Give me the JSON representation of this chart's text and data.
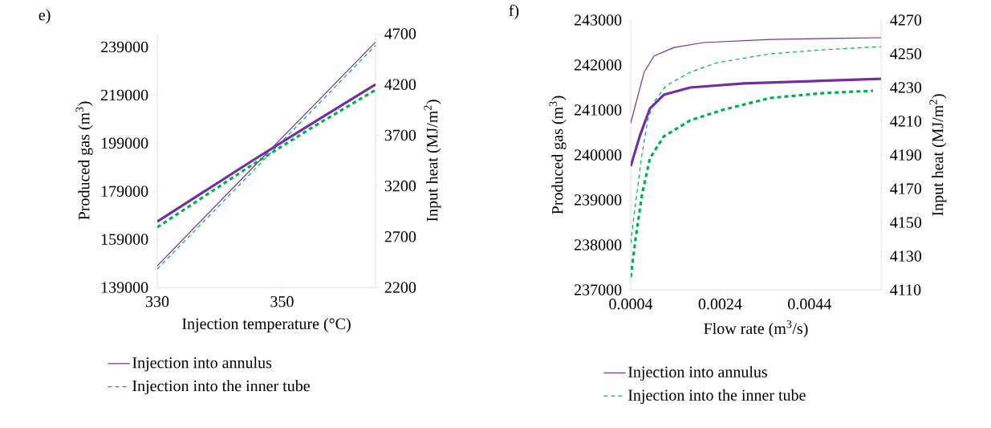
{
  "chart_data": [
    {
      "type": "line",
      "title": "e)",
      "xlabel": "Injection temperature (°C)",
      "ylabel": "Produced gas (m$^{3}$)",
      "y2label": "Input heat (MJ/m$^{2}$)",
      "xlim": [
        330,
        365
      ],
      "xticks": [
        330,
        350
      ],
      "ylim": [
        139000,
        244500
      ],
      "yticks": [
        139000,
        159000,
        179000,
        199000,
        219000,
        239000
      ],
      "y2lim": [
        2200,
        4700
      ],
      "y2ticks": [
        2200,
        2700,
        3200,
        3700,
        4200,
        4700
      ],
      "grid": false,
      "legend": "bottom",
      "marker": "none",
      "series": [
        {
          "name": "Injection into annulus",
          "color": "#7030a0",
          "line_style": "solid",
          "x": [
            330,
            345,
            355,
            365
          ],
          "values": [
            148000,
            188000,
            214500,
            241000
          ]
        },
        {
          "name": "Injection into the inner tube",
          "color": "#00b050",
          "line_style": "dashed",
          "x": [
            330,
            345,
            355,
            365
          ],
          "values": [
            146700,
            186500,
            213000,
            239700
          ]
        },
        {
          "color": "#7030a0",
          "line_style": "solid",
          "axis": "y2",
          "x": [
            330,
            345,
            355,
            365
          ],
          "values": [
            2849,
            3440,
            3822,
            4200
          ]
        },
        {
          "color": "#00b050",
          "line_style": "dashed",
          "axis": "y2",
          "x": [
            330,
            345,
            355,
            365
          ],
          "values": [
            2793,
            3400,
            3782,
            4146
          ]
        }
      ]
    },
    {
      "type": "line",
      "title": "f)",
      "xlabel": "Flow rate (m$^{3}$/s)",
      "ylabel": "Produced gas (m$^{3}$)",
      "y2label": "Input heat (MJ/m$^{2}$)",
      "xlim": [
        0.0004,
        0.006
      ],
      "xticks": [
        0.0004,
        0.0024,
        0.0044
      ],
      "ylim": [
        237000,
        243000
      ],
      "yticks": [
        237000,
        238000,
        239000,
        240000,
        241000,
        242000,
        243000
      ],
      "y2lim": [
        4110,
        4270
      ],
      "y2ticks": [
        4110,
        4130,
        4150,
        4170,
        4190,
        4210,
        4230,
        4250,
        4270
      ],
      "grid": false,
      "legend": "bottom",
      "marker": "none",
      "series": [
        {
          "name": "Injection into annulus",
          "color": "#7030a0",
          "line_style": "solid",
          "x": [
            0.0004,
            0.0007,
            0.00092,
            0.00137,
            0.00203,
            0.00352,
            0.006
          ],
          "values": [
            240710,
            241840,
            242200,
            242390,
            242500,
            242570,
            242610
          ]
        },
        {
          "name": "Injection into the inner tube",
          "color": "#00b050",
          "line_style": "dashed",
          "x": [
            0.0004,
            0.00051,
            0.00065,
            0.00078,
            0.00092,
            0.00119,
            0.00173,
            0.00232,
            0.00352,
            0.00472,
            0.006
          ],
          "values": [
            238040,
            238930,
            240000,
            240770,
            241180,
            241540,
            241840,
            242050,
            242250,
            242340,
            242410
          ]
        },
        {
          "color": "#7030a0",
          "line_style": "solid",
          "axis": "y2",
          "x": [
            0.0004,
            0.0006,
            0.00083,
            0.00114,
            0.00173,
            0.00293,
            0.006
          ],
          "values": [
            4183.3,
            4201.0,
            4217.6,
            4225.7,
            4230.0,
            4232.4,
            4235.2
          ]
        },
        {
          "color": "#00b050",
          "line_style": "dashed",
          "axis": "y2",
          "x": [
            0.0004,
            0.00051,
            0.00065,
            0.00083,
            0.00114,
            0.00173,
            0.00245,
            0.00352,
            0.00472,
            0.00582
          ],
          "values": [
            4117.6,
            4140.5,
            4166.2,
            4188.1,
            4201.0,
            4210.5,
            4216.7,
            4223.8,
            4226.7,
            4228.1
          ]
        }
      ]
    }
  ]
}
